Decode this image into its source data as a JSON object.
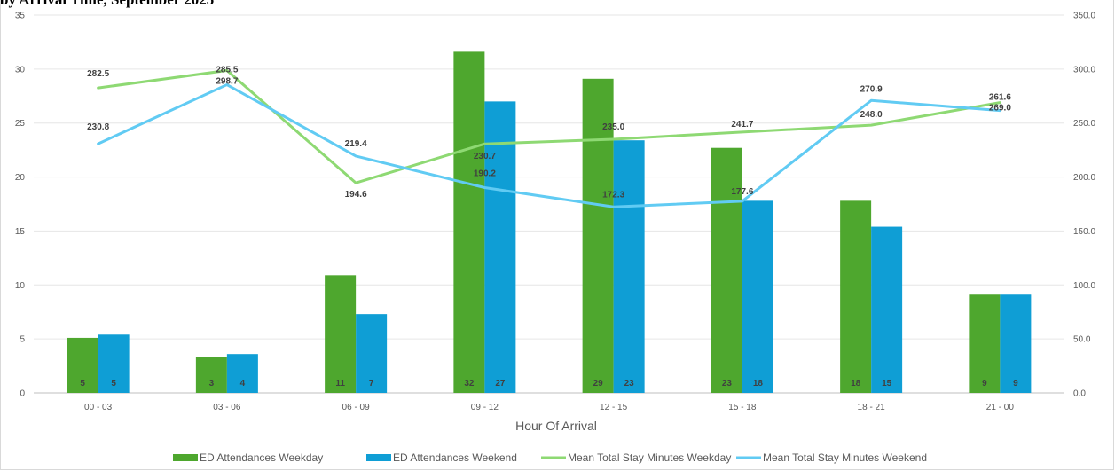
{
  "title_fragment": "by Arrival Time, September 2025",
  "chart_data": {
    "type": "bar",
    "categories": [
      "00 - 03",
      "03 - 06",
      "06 - 09",
      "09 - 12",
      "12 - 15",
      "15 - 18",
      "18 - 21",
      "21 - 00"
    ],
    "xlabel": "Hour Of Arrival",
    "y_left": {
      "min": 0,
      "max": 35,
      "step": 5,
      "ticks": [
        "0",
        "5",
        "10",
        "15",
        "20",
        "25",
        "30",
        "35"
      ]
    },
    "y_right": {
      "min": 0,
      "max": 350,
      "step": 50,
      "ticks": [
        "0.0",
        "50.0",
        "100.0",
        "150.0",
        "200.0",
        "250.0",
        "300.0",
        "350.0"
      ]
    },
    "grid": true,
    "legend_position": "bottom",
    "series": [
      {
        "name": "ED Attendances Weekday",
        "kind": "bar",
        "axis": "left",
        "color": "#4ea72e",
        "values": [
          5.1,
          3.3,
          10.9,
          31.6,
          29.1,
          22.7,
          17.8,
          9.1
        ],
        "labels": [
          "5",
          "3",
          "11",
          "32",
          "29",
          "23",
          "18",
          "9"
        ]
      },
      {
        "name": "ED Attendances Weekend",
        "kind": "bar",
        "axis": "left",
        "color": "#0f9ed5",
        "values": [
          5.4,
          3.6,
          7.3,
          27.0,
          23.4,
          17.8,
          15.4,
          9.1
        ],
        "labels": [
          "5",
          "4",
          "7",
          "27",
          "23",
          "18",
          "15",
          "9"
        ]
      },
      {
        "name": "Mean Total Stay Minutes Weekday",
        "kind": "line",
        "axis": "right",
        "color": "#8ed973",
        "values": [
          282.5,
          298.7,
          194.6,
          230.7,
          235.0,
          241.7,
          248.0,
          269.0
        ],
        "labels": [
          "282.5",
          "298.7",
          "194.6",
          "230.7",
          "235.0",
          "241.7",
          "248.0",
          "269.0"
        ]
      },
      {
        "name": "Mean Total Stay Minutes Weekend",
        "kind": "line",
        "axis": "right",
        "color": "#61cbf3",
        "values": [
          230.8,
          285.5,
          219.4,
          190.2,
          172.3,
          177.6,
          270.9,
          261.6
        ],
        "labels": [
          "230.8",
          "285.5",
          "219.4",
          "190.2",
          "172.3",
          "177.6",
          "270.9",
          "261.6"
        ]
      }
    ]
  }
}
